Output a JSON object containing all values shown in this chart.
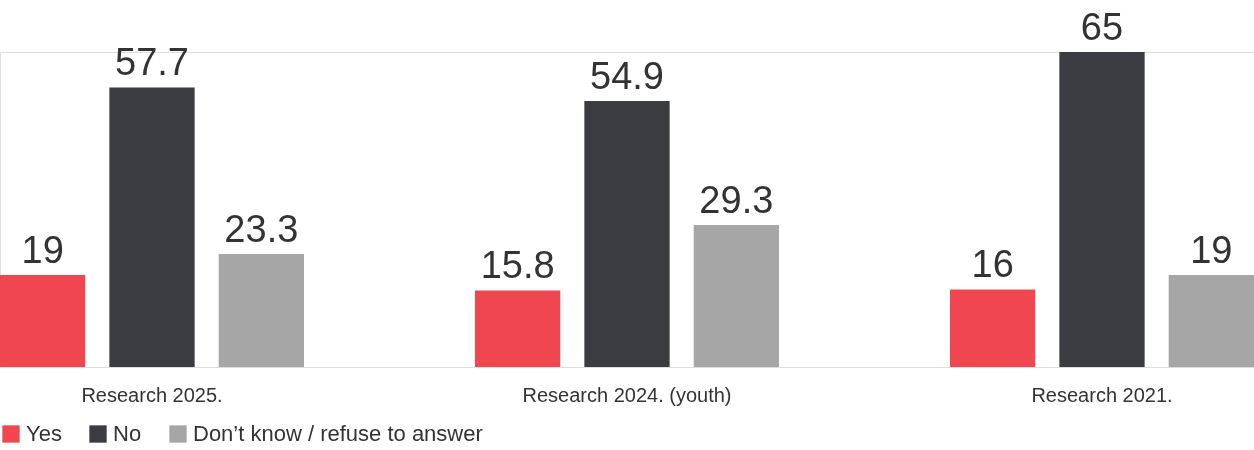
{
  "chart_data": {
    "type": "bar",
    "categories": [
      "Research 2025.",
      "Research 2024. (youth)",
      "Research 2021."
    ],
    "series": [
      {
        "name": "Yes",
        "color": "#f0464f",
        "values": [
          19,
          15.8,
          16
        ]
      },
      {
        "name": "No",
        "color": "#3a3c41",
        "values": [
          57.7,
          54.9,
          65
        ]
      },
      {
        "name": "Don’t know / refuse to answer",
        "color": "#a6a6a6",
        "values": [
          23.3,
          29.3,
          19
        ]
      }
    ],
    "data_labels": true,
    "legend": "bottom",
    "grid": false
  }
}
